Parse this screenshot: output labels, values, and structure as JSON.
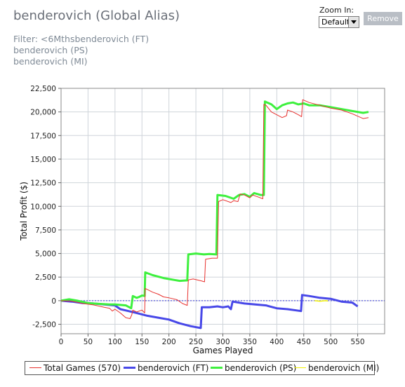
{
  "header": {
    "title": "benderovich (Global Alias)",
    "filters": [
      "Filter: <6Mthsbenderovich (FT)",
      "benderovich (PS)",
      "benderovich (MI)"
    ]
  },
  "controls": {
    "zoom_label": "Zoom In:",
    "zoom_value": "Default",
    "remove_label": "Remove"
  },
  "colors": {
    "total": "#e8322f",
    "ft": "#4848e8",
    "ps": "#3ef03e",
    "mi": "#f0f000",
    "zero_line": "#3a3ad8",
    "grid": "#cfd4da"
  },
  "chart_data": {
    "type": "line",
    "xlabel": "Games Played",
    "ylabel": "Total Profit ($)",
    "xlim": [
      0,
      600
    ],
    "ylim": [
      -3500,
      22500
    ],
    "x_ticks": [
      "0",
      "50",
      "100",
      "150",
      "200",
      "250",
      "300",
      "350",
      "400",
      "450",
      "500",
      "550"
    ],
    "y_ticks": [
      "22,500",
      "20,000",
      "17,500",
      "15,000",
      "12,500",
      "10,000",
      "7,500",
      "5,000",
      "2,500",
      "0",
      "-2,500"
    ],
    "legend": [
      "Total Games (570)",
      "benderovich (FT)",
      "benderovich (PS)",
      "benderovich (MI)"
    ],
    "series": [
      {
        "name": "Total Games (570)",
        "points": [
          [
            0,
            0
          ],
          [
            20,
            -50
          ],
          [
            40,
            -300
          ],
          [
            60,
            -450
          ],
          [
            80,
            -700
          ],
          [
            90,
            -800
          ],
          [
            95,
            -1100
          ],
          [
            100,
            -900
          ],
          [
            110,
            -1300
          ],
          [
            120,
            -1800
          ],
          [
            128,
            -1900
          ],
          [
            131,
            -1500
          ],
          [
            133,
            -1000
          ],
          [
            140,
            -1200
          ],
          [
            150,
            -1000
          ],
          [
            155,
            -1300
          ],
          [
            156,
            1300
          ],
          [
            170,
            900
          ],
          [
            180,
            700
          ],
          [
            190,
            400
          ],
          [
            200,
            300
          ],
          [
            215,
            100
          ],
          [
            225,
            -300
          ],
          [
            234,
            -500
          ],
          [
            236,
            2200
          ],
          [
            245,
            2300
          ],
          [
            260,
            2100
          ],
          [
            266,
            2000
          ],
          [
            268,
            4400
          ],
          [
            280,
            4500
          ],
          [
            290,
            4500
          ],
          [
            292,
            10500
          ],
          [
            300,
            10700
          ],
          [
            315,
            10400
          ],
          [
            320,
            10600
          ],
          [
            328,
            10500
          ],
          [
            332,
            11300
          ],
          [
            340,
            11200
          ],
          [
            350,
            10900
          ],
          [
            355,
            11200
          ],
          [
            365,
            11000
          ],
          [
            374,
            10800
          ],
          [
            376,
            20800
          ],
          [
            380,
            20700
          ],
          [
            390,
            20000
          ],
          [
            400,
            19700
          ],
          [
            410,
            19400
          ],
          [
            418,
            19600
          ],
          [
            420,
            20200
          ],
          [
            430,
            20000
          ],
          [
            440,
            19700
          ],
          [
            446,
            19500
          ],
          [
            448,
            21300
          ],
          [
            460,
            21000
          ],
          [
            480,
            20700
          ],
          [
            500,
            20400
          ],
          [
            520,
            20200
          ],
          [
            540,
            19800
          ],
          [
            560,
            19300
          ],
          [
            570,
            19400
          ]
        ]
      },
      {
        "name": "benderovich (FT)",
        "points": [
          [
            0,
            0
          ],
          [
            20,
            -100
          ],
          [
            40,
            -250
          ],
          [
            60,
            -300
          ],
          [
            80,
            -400
          ],
          [
            100,
            -500
          ],
          [
            110,
            -900
          ],
          [
            125,
            -1100
          ],
          [
            140,
            -1300
          ],
          [
            160,
            -1600
          ],
          [
            180,
            -1800
          ],
          [
            200,
            -2000
          ],
          [
            220,
            -2400
          ],
          [
            240,
            -2700
          ],
          [
            259,
            -2900
          ],
          [
            261,
            -700
          ],
          [
            275,
            -700
          ],
          [
            290,
            -600
          ],
          [
            300,
            -700
          ],
          [
            310,
            -600
          ],
          [
            315,
            -900
          ],
          [
            318,
            -100
          ],
          [
            340,
            -300
          ],
          [
            360,
            -400
          ],
          [
            380,
            -500
          ],
          [
            400,
            -800
          ],
          [
            420,
            -900
          ],
          [
            445,
            -1100
          ],
          [
            447,
            600
          ],
          [
            460,
            500
          ],
          [
            480,
            300
          ],
          [
            500,
            200
          ],
          [
            520,
            -100
          ],
          [
            540,
            -200
          ],
          [
            550,
            -600
          ]
        ]
      },
      {
        "name": "benderovich (PS)",
        "points": [
          [
            0,
            0
          ],
          [
            15,
            150
          ],
          [
            30,
            0
          ],
          [
            50,
            -250
          ],
          [
            60,
            -300
          ],
          [
            75,
            -350
          ],
          [
            90,
            -400
          ],
          [
            100,
            -400
          ],
          [
            120,
            -500
          ],
          [
            130,
            -800
          ],
          [
            133,
            500
          ],
          [
            140,
            300
          ],
          [
            145,
            400
          ],
          [
            150,
            550
          ],
          [
            155,
            500
          ],
          [
            156,
            3000
          ],
          [
            170,
            2700
          ],
          [
            190,
            2400
          ],
          [
            210,
            2200
          ],
          [
            220,
            2100
          ],
          [
            234,
            2150
          ],
          [
            236,
            4900
          ],
          [
            250,
            5000
          ],
          [
            265,
            4900
          ],
          [
            275,
            4950
          ],
          [
            288,
            4900
          ],
          [
            290,
            11200
          ],
          [
            305,
            11100
          ],
          [
            320,
            10800
          ],
          [
            330,
            11200
          ],
          [
            340,
            11300
          ],
          [
            350,
            11000
          ],
          [
            358,
            11400
          ],
          [
            370,
            11200
          ],
          [
            376,
            11200
          ],
          [
            378,
            21100
          ],
          [
            390,
            20800
          ],
          [
            400,
            20300
          ],
          [
            410,
            20700
          ],
          [
            420,
            20900
          ],
          [
            430,
            21000
          ],
          [
            440,
            20800
          ],
          [
            450,
            20900
          ],
          [
            460,
            20700
          ],
          [
            480,
            20700
          ],
          [
            500,
            20500
          ],
          [
            520,
            20300
          ],
          [
            540,
            20100
          ],
          [
            560,
            19900
          ],
          [
            570,
            20000
          ]
        ]
      },
      {
        "name": "benderovich (MI)",
        "points": [
          [
            470,
            0
          ],
          [
            480,
            -50
          ],
          [
            490,
            0
          ],
          [
            495,
            -30
          ]
        ]
      }
    ]
  }
}
